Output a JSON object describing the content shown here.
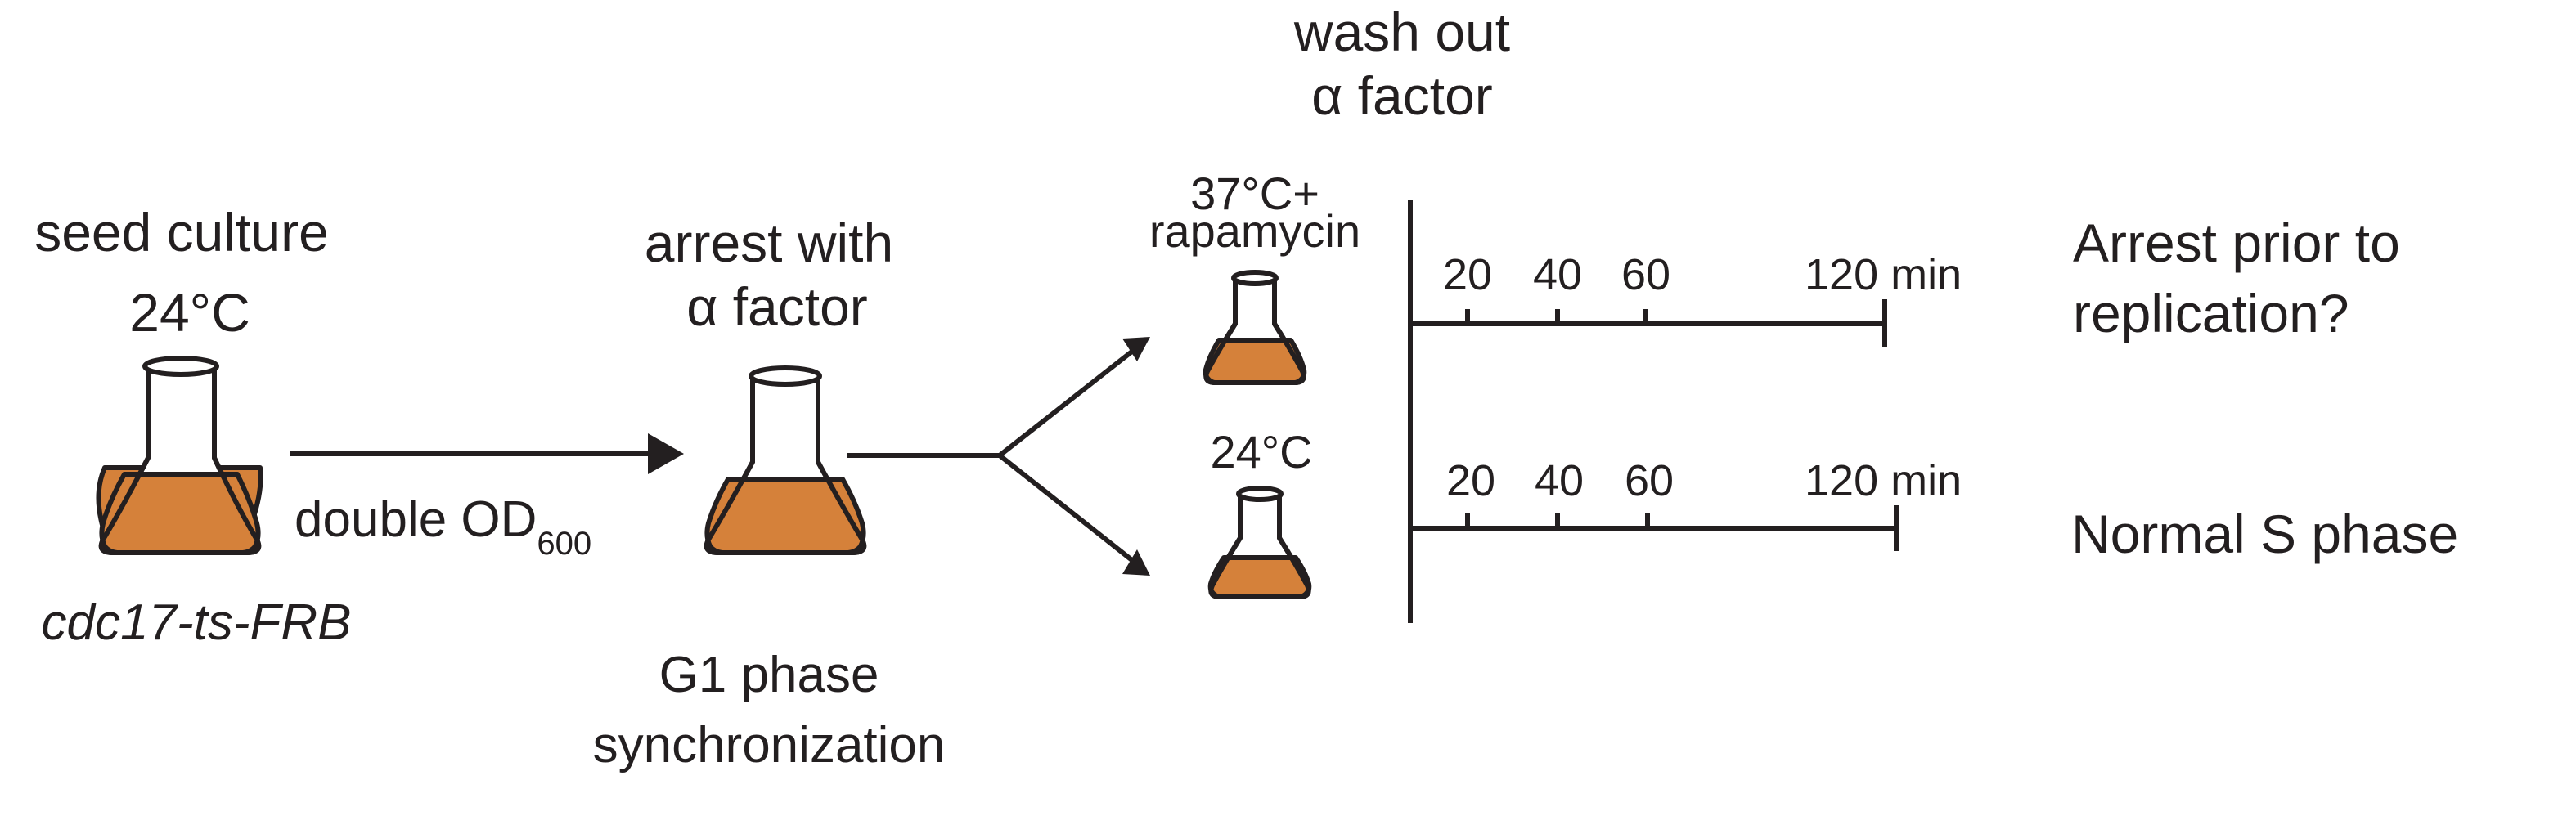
{
  "colors": {
    "culture": "#d5813a",
    "ink": "#231f20",
    "background": "#ffffff"
  },
  "seed": {
    "line1": "seed culture",
    "line2": "24°C",
    "strain": "cdc17-ts-FRB"
  },
  "transfer": {
    "label": "double OD",
    "subscript": "600"
  },
  "arrest": {
    "line1": "arrest with",
    "line2": "α factor",
    "caption1": "G1 phase",
    "caption2": "synchronization"
  },
  "wash": {
    "line1": "wash out",
    "line2": "α factor"
  },
  "conditions": [
    {
      "label1": "37°C+",
      "label2": "rapamycin",
      "ticks": [
        "20",
        "40",
        "60",
        "120 min"
      ],
      "outcome1": "Arrest prior to",
      "outcome2": "replication?"
    },
    {
      "label1": "24°C",
      "ticks": [
        "20",
        "40",
        "60",
        "120 min"
      ],
      "outcome1": "Normal S phase"
    }
  ]
}
